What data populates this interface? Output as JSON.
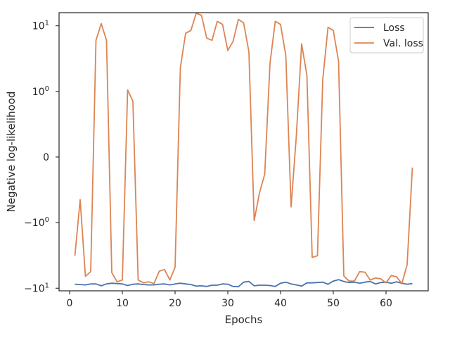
{
  "chart_data": {
    "type": "line",
    "xlabel": "Epochs",
    "ylabel": "Negative log-likelihood",
    "xlim": [
      -2,
      68
    ],
    "x_ticks": [
      0,
      10,
      20,
      30,
      40,
      50,
      60
    ],
    "yscale": "symlog",
    "y_ticks": [
      {
        "value": 10,
        "label_base": "10",
        "label_exp": "1"
      },
      {
        "value": 1,
        "label_base": "10",
        "label_exp": "0"
      },
      {
        "value": 0,
        "label_base": "0",
        "label_exp": ""
      },
      {
        "value": -1,
        "label_base": "−10",
        "label_exp": "0"
      },
      {
        "value": -10,
        "label_base": "−10",
        "label_exp": "1"
      }
    ],
    "grid": false,
    "legend_position": "top-right",
    "x": [
      1,
      2,
      3,
      4,
      5,
      6,
      7,
      8,
      9,
      10,
      11,
      12,
      13,
      14,
      15,
      16,
      17,
      18,
      19,
      20,
      21,
      22,
      23,
      24,
      25,
      26,
      27,
      28,
      29,
      30,
      31,
      32,
      33,
      34,
      35,
      36,
      37,
      38,
      39,
      40,
      41,
      42,
      43,
      44,
      45,
      46,
      47,
      48,
      49,
      50,
      51,
      52,
      53,
      54,
      55,
      56,
      57,
      58,
      59,
      60,
      61,
      62,
      63,
      64,
      65
    ],
    "series": [
      {
        "name": "Loss",
        "color": "#4c72b0",
        "values": [
          -8.7,
          -8.8,
          -8.9,
          -8.6,
          -8.6,
          -9.2,
          -8.6,
          -8.4,
          -8.5,
          -8.6,
          -9.1,
          -8.7,
          -8.6,
          -8.8,
          -8.9,
          -8.9,
          -8.7,
          -8.6,
          -8.9,
          -8.6,
          -8.4,
          -8.6,
          -8.8,
          -9.3,
          -9.2,
          -9.4,
          -9.0,
          -9.0,
          -8.6,
          -8.7,
          -9.4,
          -9.5,
          -8.1,
          -7.9,
          -9.2,
          -9.0,
          -9.0,
          -9.1,
          -9.4,
          -8.4,
          -8.1,
          -8.6,
          -8.9,
          -9.3,
          -8.3,
          -8.3,
          -8.2,
          -8.1,
          -8.7,
          -7.8,
          -7.4,
          -7.9,
          -8.2,
          -8.1,
          -8.4,
          -8.1,
          -7.9,
          -8.6,
          -8.2,
          -8.1,
          -8.4,
          -8.0,
          -8.4,
          -8.7,
          -8.5
        ]
      },
      {
        "name": "Val. loss",
        "color": "#dd8452",
        "values": [
          -3.2,
          -0.65,
          -6.6,
          -5.6,
          6.0,
          10.8,
          6.0,
          -5.8,
          -8.0,
          -7.5,
          1.05,
          0.85,
          -7.5,
          -8.3,
          -8.0,
          -8.5,
          -5.5,
          -5.2,
          -7.5,
          -4.8,
          2.3,
          7.7,
          8.5,
          15.5,
          14.5,
          6.5,
          6.0,
          11.7,
          10.5,
          4.2,
          5.8,
          12.5,
          11.1,
          4.0,
          -0.97,
          -0.55,
          -0.26,
          2.7,
          11.7,
          10.5,
          3.5,
          -0.76,
          0.33,
          5.3,
          1.75,
          -3.4,
          -3.2,
          1.5,
          9.5,
          8.5,
          2.9,
          -6.5,
          -7.8,
          -7.8,
          -5.6,
          -5.7,
          -7.5,
          -7.0,
          -7.2,
          -8.3,
          -6.4,
          -6.7,
          -8.5,
          -4.4,
          -0.16
        ]
      }
    ]
  }
}
